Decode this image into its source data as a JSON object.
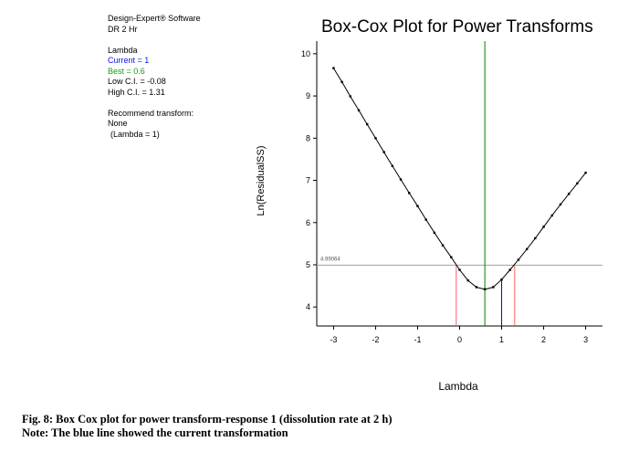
{
  "info": {
    "software": "Design-Expert® Software",
    "response": "DR 2 Hr",
    "lambda_header": "Lambda",
    "current": "Current = 1",
    "best": "Best = 0.6",
    "low_ci": "Low C.I. = -0.08",
    "high_ci": "High C.I. = 1.31",
    "recommend_header": "Recommend transform:",
    "recommend_value": "None",
    "recommend_lambda": "(Lambda = 1)"
  },
  "colors": {
    "current": "#0000ff",
    "best": "#008000",
    "ci": "#ff6060",
    "threshold": "#a0a0a0",
    "curve": "#000000"
  },
  "caption": {
    "line1": "Fig. 8: Box Cox plot for power transform-response 1 (dissolution rate at 2 h)",
    "line2": "Note: The blue line showed the current transformation"
  },
  "chart_data": {
    "type": "line",
    "title": "Box-Cox Plot for Power Transforms",
    "xlabel": "Lambda",
    "ylabel": "Ln(ResidualSS)",
    "xlim": [
      -3.4,
      3.4
    ],
    "ylim": [
      3.55,
      10.3
    ],
    "xticks": [
      -3,
      -2,
      -1,
      0,
      1,
      2,
      3
    ],
    "xtick_labels": [
      "-3",
      "-2",
      "-1",
      "0",
      "1",
      "2",
      "3"
    ],
    "yticks": [
      4,
      5,
      6,
      7,
      8,
      9,
      10
    ],
    "ytick_labels": [
      "4",
      "5",
      "6",
      "7",
      "8",
      "9",
      "10"
    ],
    "threshold": 4.99064,
    "threshold_label": "4.99064",
    "current_lambda": 1,
    "best_lambda": 0.6,
    "low_ci": -0.08,
    "high_ci": 1.31,
    "series": [
      {
        "x": [
          -3.0,
          -2.8,
          -2.6,
          -2.4,
          -2.2,
          -2.0,
          -1.8,
          -1.6,
          -1.4,
          -1.2,
          -1.0,
          -0.8,
          -0.6,
          -0.4,
          -0.2,
          0.0,
          0.2,
          0.4,
          0.6,
          0.8,
          1.0,
          1.2,
          1.4,
          1.6,
          1.8,
          2.0,
          2.2,
          2.4,
          2.6,
          2.8,
          3.0
        ],
        "y": [
          9.66,
          9.33,
          8.99,
          8.66,
          8.33,
          8.0,
          7.67,
          7.34,
          7.02,
          6.7,
          6.39,
          6.07,
          5.76,
          5.46,
          5.18,
          4.88,
          4.63,
          4.47,
          4.42,
          4.47,
          4.65,
          4.88,
          5.12,
          5.37,
          5.63,
          5.9,
          6.17,
          6.43,
          6.68,
          6.93,
          7.18
        ]
      }
    ]
  }
}
